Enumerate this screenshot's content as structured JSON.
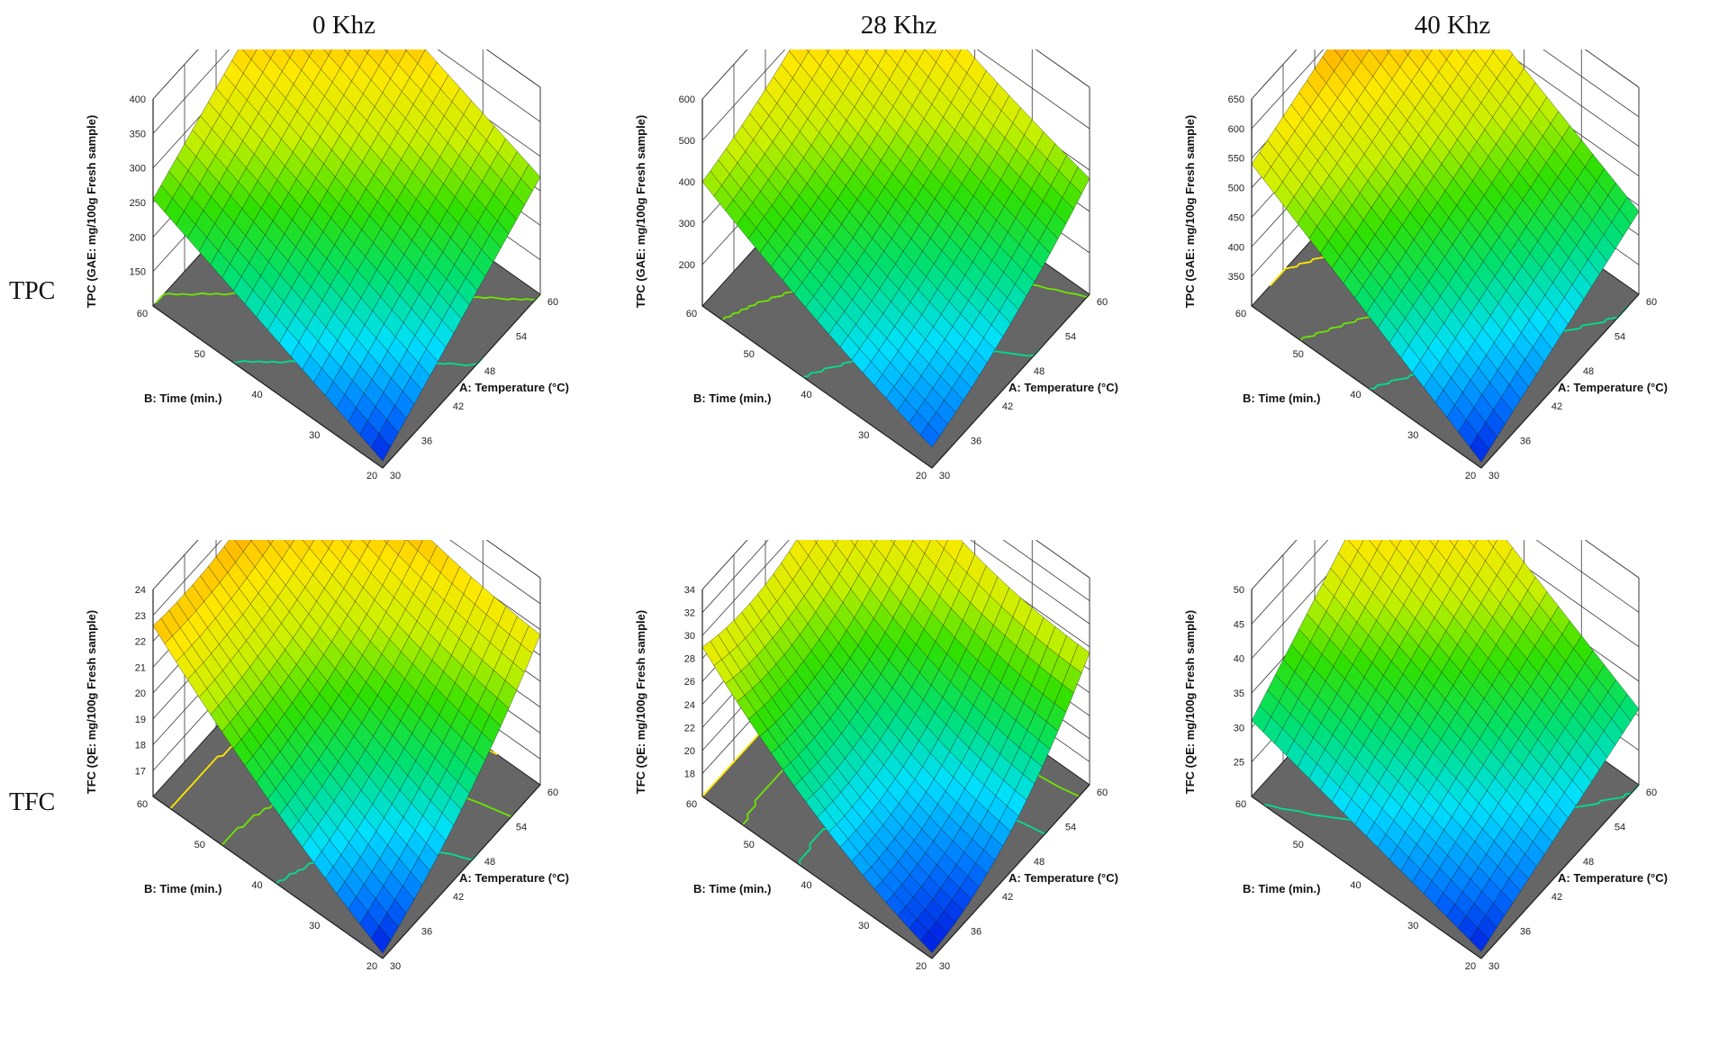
{
  "column_titles": [
    "0 Khz",
    "28 Khz",
    "40 Khz"
  ],
  "row_labels": [
    "TPC",
    "TFC"
  ],
  "colorscale": [
    "#0000d8",
    "#0078ff",
    "#00e0ff",
    "#00e070",
    "#30e000",
    "#c8f000",
    "#ffe800",
    "#ff9a00",
    "#e60000"
  ],
  "chart_data": [
    {
      "type": "surface3d",
      "title": "0 Khz",
      "row": "TPC",
      "xlabel": "A: Temperature (°C)",
      "ylabel": "B: Time (min.)",
      "zlabel": "TPC (GAE: mg/100g Fresh sample)",
      "xlim": [
        30,
        60
      ],
      "ylim": [
        20,
        60
      ],
      "zlim": [
        100,
        400
      ],
      "x_ticks": [
        "30",
        "36",
        "42",
        "48",
        "54",
        "60"
      ],
      "y_ticks": [
        "20",
        "30",
        "40",
        "50",
        "60"
      ],
      "z_ticks": [
        "150",
        "200",
        "250",
        "300",
        "350",
        "400"
      ],
      "surface_corners": {
        "A30_B20": 110,
        "A60_B20": 270,
        "A30_B60": 255,
        "A60_B60": 405
      },
      "curvature": 0
    },
    {
      "type": "surface3d",
      "title": "28 Khz",
      "row": "TPC",
      "xlabel": "A: Temperature (°C)",
      "ylabel": "B: Time (min.)",
      "zlabel": "TPC (GAE: mg/100g Fresh sample)",
      "xlim": [
        30,
        60
      ],
      "ylim": [
        20,
        60
      ],
      "zlim": [
        100,
        600
      ],
      "x_ticks": [
        "30",
        "36",
        "42",
        "48",
        "54",
        "60"
      ],
      "y_ticks": [
        "20",
        "30",
        "40",
        "50",
        "60"
      ],
      "z_ticks": [
        "200",
        "300",
        "400",
        "500",
        "600"
      ],
      "surface_corners": {
        "A30_B20": 150,
        "A60_B20": 380,
        "A30_B60": 400,
        "A60_B60": 600
      },
      "curvature": -25
    },
    {
      "type": "surface3d",
      "title": "40 Khz",
      "row": "TPC",
      "xlabel": "A: Temperature (°C)",
      "ylabel": "B: Time (min.)",
      "zlabel": "TPC (GAE: mg/100g Fresh sample)",
      "xlim": [
        30,
        60
      ],
      "ylim": [
        20,
        60
      ],
      "zlim": [
        300,
        650
      ],
      "x_ticks": [
        "30",
        "36",
        "42",
        "48",
        "54",
        "60"
      ],
      "y_ticks": [
        "20",
        "30",
        "40",
        "50",
        "60"
      ],
      "z_ticks": [
        "350",
        "400",
        "450",
        "500",
        "550",
        "600",
        "650"
      ],
      "surface_corners": {
        "A30_B20": 310,
        "A60_B20": 440,
        "A30_B60": 540,
        "A60_B60": 650
      },
      "curvature": 0
    },
    {
      "type": "surface3d",
      "title": "0 Khz",
      "row": "TFC",
      "xlabel": "A: Temperature (°C)",
      "ylabel": "B: Time (min.)",
      "zlabel": "TFC (QE: mg/100g Fresh sample)",
      "xlim": [
        30,
        60
      ],
      "ylim": [
        20,
        60
      ],
      "zlim": [
        16,
        24
      ],
      "x_ticks": [
        "30",
        "36",
        "42",
        "48",
        "54",
        "60"
      ],
      "y_ticks": [
        "20",
        "30",
        "40",
        "50",
        "60"
      ],
      "z_ticks": [
        "17",
        "18",
        "19",
        "20",
        "21",
        "22",
        "23",
        "24"
      ],
      "surface_corners": {
        "A30_B20": 16.2,
        "A60_B20": 21.8,
        "A30_B60": 22.6,
        "A60_B60": 24
      },
      "curvature": -0.6
    },
    {
      "type": "surface3d",
      "title": "28 Khz",
      "row": "TFC",
      "xlabel": "A: Temperature (°C)",
      "ylabel": "B: Time (min.)",
      "zlabel": "TFC (QE: mg/100g Fresh sample)",
      "xlim": [
        30,
        60
      ],
      "ylim": [
        20,
        60
      ],
      "zlim": [
        16,
        34
      ],
      "x_ticks": [
        "30",
        "36",
        "42",
        "48",
        "54",
        "60"
      ],
      "y_ticks": [
        "20",
        "30",
        "40",
        "50",
        "60"
      ],
      "z_ticks": [
        "18",
        "20",
        "22",
        "24",
        "26",
        "28",
        "30",
        "32",
        "34"
      ],
      "surface_corners": {
        "A30_B20": 16.5,
        "A60_B20": 27.5,
        "A30_B60": 29,
        "A60_B60": 33.5
      },
      "curvature": -2.5
    },
    {
      "type": "surface3d",
      "title": "40 Khz",
      "row": "TFC",
      "xlabel": "A: Temperature (°C)",
      "ylabel": "B: Time (min.)",
      "zlabel": "TFC (QE: mg/100g Fresh sample)",
      "xlim": [
        30,
        60
      ],
      "ylim": [
        20,
        60
      ],
      "zlim": [
        20,
        50
      ],
      "x_ticks": [
        "30",
        "36",
        "42",
        "48",
        "54",
        "60"
      ],
      "y_ticks": [
        "20",
        "30",
        "40",
        "50",
        "60"
      ],
      "z_ticks": [
        "25",
        "30",
        "35",
        "40",
        "45",
        "50"
      ],
      "surface_corners": {
        "A30_B20": 21,
        "A60_B20": 31,
        "A30_B60": 31,
        "A60_B60": 50
      },
      "curvature": 0
    }
  ]
}
